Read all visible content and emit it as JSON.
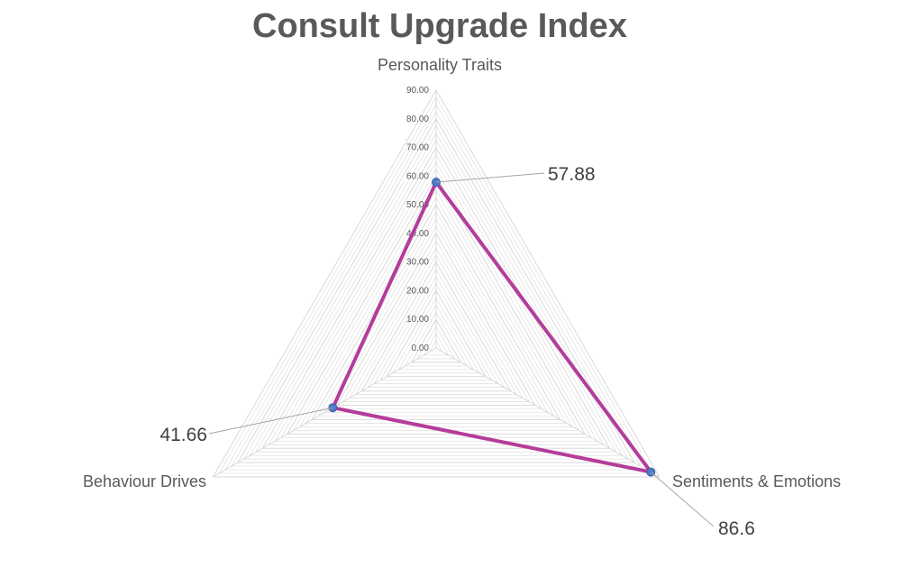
{
  "chart_data": {
    "type": "radar",
    "title": "Consult Upgrade Index",
    "categories": [
      "Personality Traits",
      "Sentiments & Emotions",
      "Behaviour Drives"
    ],
    "series": [
      {
        "values": [
          57.88,
          86.6,
          41.66
        ],
        "data_labels": [
          "57.88",
          "86.6",
          "41.66"
        ]
      }
    ],
    "axis": {
      "min": 0,
      "max": 90,
      "major_step": 10,
      "minor_step": 2.5,
      "tick_labels": [
        "0.00",
        "10.00",
        "20.00",
        "30.00",
        "40.00",
        "50.00",
        "60.00",
        "70.00",
        "80.00",
        "90.00"
      ]
    },
    "grid": true,
    "legend": "none",
    "colors": {
      "line": "#b43c9a",
      "marker": "#4f7ac7",
      "grid": "#d9d9d9",
      "leader": "#a6a6a6"
    }
  }
}
